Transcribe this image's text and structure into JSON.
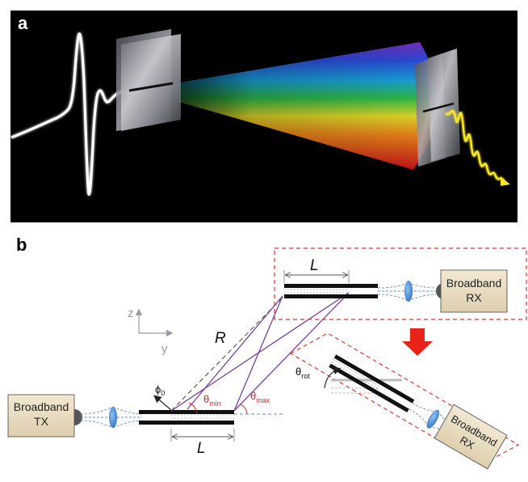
{
  "panel_a": {
    "letter": "a"
  },
  "panel_b": {
    "letter": "b",
    "tx_label_line1": "Broadband",
    "tx_label_line2": "TX",
    "rx_label_line1": "Broadband",
    "rx_label_line2": "RX",
    "rx_rot_label_line1": "Broadband",
    "rx_rot_label_line2": "RX",
    "length_label_bottom": "L",
    "length_label_top": "L",
    "distance_label": "R",
    "axis_z": "z",
    "axis_y": "y",
    "phi_label": "ϕ",
    "phi_sub": "0",
    "theta_min_label": "θ",
    "theta_min_sub": "min",
    "theta_max_label": "θ",
    "theta_max_sub": "max",
    "theta_rot_label": "θ",
    "theta_rot_sub": "rot"
  },
  "colors": {
    "background_a": "#000000",
    "pulse": "#ffffff",
    "output_pulse": "#f5e52a",
    "ray": "#7b3fa0",
    "dashed_box": "#e8332a",
    "box_fill": "#ecdfc4",
    "arrow": "#e8241a",
    "lens": "#3a86d6",
    "theta_text": "#e8241a"
  }
}
